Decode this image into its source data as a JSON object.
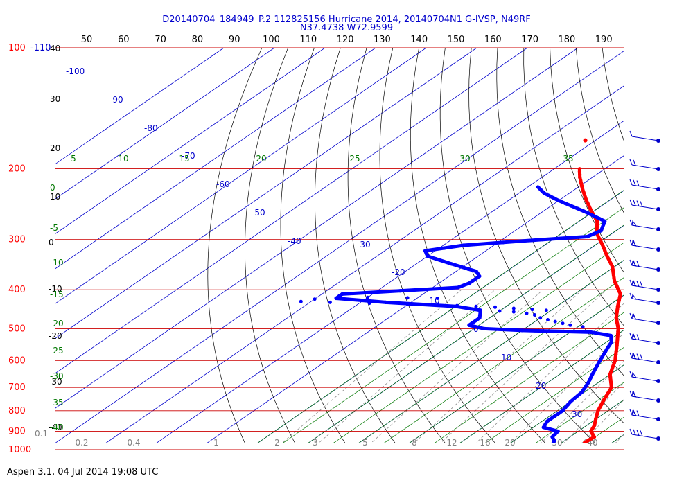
{
  "header": {
    "line1": "D20140704_184949_P.2 112825156 Hurricane 2014, 20140704N1 G-IVSP, N49RF",
    "line2": "N37.4738 W72.9599"
  },
  "footer": "Aspen 3.1, 04 Jul 2014  19:08 UTC",
  "colors": {
    "temperature": "#ff0000",
    "dewpoint": "#0000ff",
    "isobar": "#cc0000",
    "isotherm": "#0000cc",
    "dry_adiabat": "#000000",
    "moist_adiabat": "#007700",
    "mixing_ratio": "#8c8c8c"
  },
  "top_axis_labels": [
    "50",
    "60",
    "70",
    "80",
    "90",
    "100",
    "110",
    "120",
    "130",
    "140",
    "150",
    "160",
    "170",
    "180",
    "190"
  ],
  "pressure_labels": [
    "100",
    "200",
    "300",
    "400",
    "500",
    "600",
    "700",
    "800",
    "900",
    "1000"
  ],
  "extra_left_labels": {
    "top_right": "-110",
    "scale_01": "0.1"
  },
  "height_labels": [
    "40",
    "30",
    "20",
    "10",
    "0",
    "-10",
    "-20",
    "-30",
    "-40"
  ],
  "isotherm_labels": [
    "-100",
    "-90",
    "-80",
    "-70",
    "-60",
    "-50",
    "-40",
    "-30",
    "-20",
    "-10",
    "0",
    "10",
    "20",
    "30"
  ],
  "moist_left_labels": [
    "0",
    "-5",
    "-10",
    "-15",
    "-20",
    "-25",
    "-30",
    "-35",
    "-40"
  ],
  "moist_top_labels": [
    "5",
    "10",
    "15",
    "20",
    "25",
    "30",
    "35"
  ],
  "mixing_ratio_labels": [
    "0.2",
    "0.4",
    "1",
    "2",
    "3",
    "5",
    "8",
    "12",
    "16",
    "20",
    "30",
    "40"
  ],
  "chart_data": {
    "type": "skew-T log-p sounding",
    "pressure_range_hPa": [
      100,
      1000
    ],
    "series": [
      {
        "name": "temperature",
        "color": "#ff0000",
        "points": [
          {
            "p": 1000,
            "t": 25.5
          },
          {
            "p": 990,
            "t": 24.5
          },
          {
            "p": 980,
            "t": 25.5
          },
          {
            "p": 960,
            "t": 24.5
          },
          {
            "p": 930,
            "t": 24.8
          },
          {
            "p": 900,
            "t": 22.5
          },
          {
            "p": 870,
            "t": 21.5
          },
          {
            "p": 840,
            "t": 20.0
          },
          {
            "p": 800,
            "t": 18.0
          },
          {
            "p": 750,
            "t": 16.0
          },
          {
            "p": 700,
            "t": 14.0
          },
          {
            "p": 650,
            "t": 10.0
          },
          {
            "p": 600,
            "t": 7.0
          },
          {
            "p": 550,
            "t": 3.0
          },
          {
            "p": 500,
            "t": -1.5
          },
          {
            "p": 470,
            "t": -5.0
          },
          {
            "p": 440,
            "t": -8.0
          },
          {
            "p": 410,
            "t": -11.0
          },
          {
            "p": 380,
            "t": -16.0
          },
          {
            "p": 350,
            "t": -20.5
          },
          {
            "p": 330,
            "t": -24.5
          },
          {
            "p": 310,
            "t": -28.5
          },
          {
            "p": 290,
            "t": -33.0
          },
          {
            "p": 270,
            "t": -36.5
          },
          {
            "p": 255,
            "t": -40.5
          },
          {
            "p": 240,
            "t": -44.5
          },
          {
            "p": 225,
            "t": -48.5
          },
          {
            "p": 210,
            "t": -52.5
          },
          {
            "p": 200,
            "t": -55.0
          }
        ]
      },
      {
        "name": "dewpoint",
        "color": "#0000ff",
        "points": [
          {
            "p": 1000,
            "td": 20.0
          },
          {
            "p": 980,
            "td": 19.0
          },
          {
            "p": 950,
            "td": 18.0
          },
          {
            "p": 930,
            "td": 16.5
          },
          {
            "p": 900,
            "td": 16.0
          },
          {
            "p": 880,
            "td": 12.0
          },
          {
            "p": 850,
            "td": 11.0
          },
          {
            "p": 800,
            "td": 11.0
          },
          {
            "p": 760,
            "td": 10.0
          },
          {
            "p": 720,
            "td": 9.5
          },
          {
            "p": 680,
            "td": 8.0
          },
          {
            "p": 650,
            "td": 6.5
          },
          {
            "p": 600,
            "td": 4.0
          },
          {
            "p": 560,
            "td": 2.0
          },
          {
            "p": 540,
            "td": 1.0
          },
          {
            "p": 520,
            "td": -1.0
          },
          {
            "p": 510,
            "td": -6.0
          },
          {
            "p": 505,
            "td": -20.0
          },
          {
            "p": 500,
            "td": -28.0
          },
          {
            "p": 490,
            "td": -32.0
          },
          {
            "p": 470,
            "td": -32.0
          },
          {
            "p": 450,
            "td": -34.0
          },
          {
            "p": 440,
            "td": -40.0
          },
          {
            "p": 430,
            "td": -55.0
          },
          {
            "p": 420,
            "td": -66.0
          },
          {
            "p": 410,
            "td": -66.0
          },
          {
            "p": 395,
            "td": -45.0
          },
          {
            "p": 385,
            "td": -44.0
          },
          {
            "p": 370,
            "td": -44.0
          },
          {
            "p": 360,
            "td": -46.0
          },
          {
            "p": 345,
            "td": -53.0
          },
          {
            "p": 330,
            "td": -60.0
          },
          {
            "p": 320,
            "td": -62.0
          },
          {
            "p": 310,
            "td": -56.0
          },
          {
            "p": 300,
            "td": -42.0
          },
          {
            "p": 295,
            "td": -34.0
          },
          {
            "p": 285,
            "td": -33.0
          },
          {
            "p": 270,
            "td": -35.0
          },
          {
            "p": 255,
            "td": -42.0
          },
          {
            "p": 240,
            "td": -50.0
          },
          {
            "p": 230,
            "td": -55.0
          },
          {
            "p": 222,
            "td": -58.0
          }
        ]
      }
    ],
    "isolated_temperature_point": {
      "p": 170,
      "t": -62
    }
  }
}
